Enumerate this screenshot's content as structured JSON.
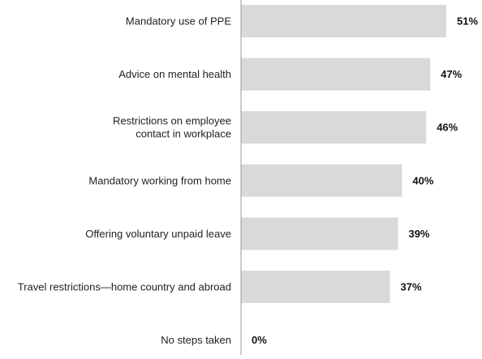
{
  "chart_data": {
    "type": "bar",
    "orientation": "horizontal",
    "categories": [
      [
        "Mandatory use of PPE"
      ],
      [
        "Advice on mental health"
      ],
      [
        "Restrictions on employee",
        "contact in workplace"
      ],
      [
        "Mandatory working from home"
      ],
      [
        "Offering voluntary unpaid leave"
      ],
      [
        "Travel restrictions—home  country and abroad"
      ],
      [
        "No steps taken"
      ]
    ],
    "values": [
      51,
      47,
      46,
      40,
      39,
      37,
      0
    ],
    "value_labels": [
      "51%",
      "47%",
      "46%",
      "40%",
      "39%",
      "37%",
      "0%"
    ],
    "title": "",
    "xlabel": "",
    "ylabel": "",
    "xlim": [
      0,
      51
    ],
    "grid": false,
    "legend": "none",
    "colors": {
      "bar": "#d9d9d9",
      "axis": "#9a9a9a",
      "text": "#222222"
    }
  }
}
